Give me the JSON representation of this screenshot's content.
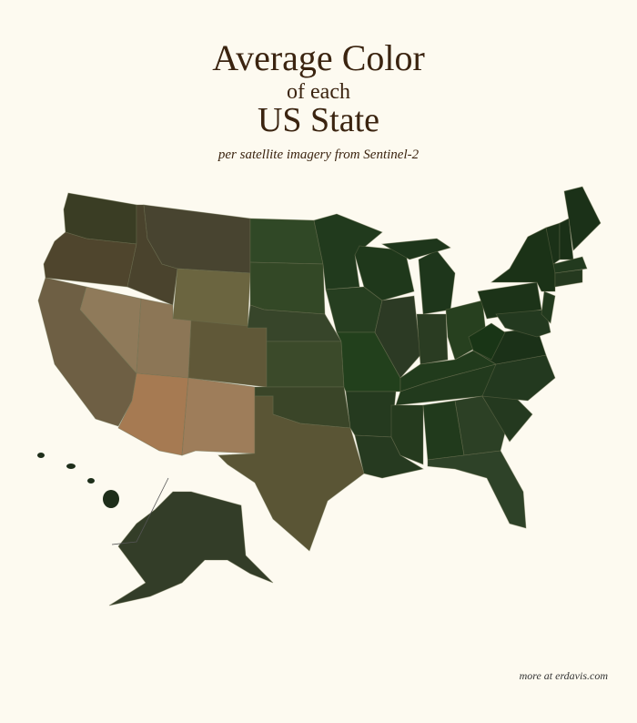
{
  "title": {
    "line1": "Average Color",
    "line2": "of each",
    "line3": "US State"
  },
  "subtitle": "per satellite imagery from Sentinel-2",
  "footer": "more at erdavis.com",
  "colors": {
    "background": "#fdfaf0",
    "text": "#3b2410",
    "border": "#6b7050"
  },
  "state_colors": {
    "WA": "#3a3d24",
    "OR": "#4f452d",
    "CA": "#6e5f44",
    "NV": "#8f7a5a",
    "ID": "#4a432d",
    "MT": "#484430",
    "WY": "#6b6540",
    "UT": "#8c7656",
    "CO": "#605838",
    "AZ": "#a67a52",
    "NM": "#9e7d5a",
    "ND": "#304826",
    "SD": "#334826",
    "NE": "#37452a",
    "KS": "#3b4a2a",
    "OK": "#3a4528",
    "TX": "#5a5535",
    "MN": "#213a1d",
    "IA": "#263e20",
    "MO": "#22401c",
    "AR": "#253a1f",
    "LA": "#263a20",
    "WI": "#1f381b",
    "IL": "#2c3a24",
    "MI": "#1e361b",
    "IN": "#2a3c22",
    "OH": "#27401f",
    "KY": "#213b1c",
    "TN": "#223a1d",
    "MS": "#253a1e",
    "AL": "#213a1c",
    "GA": "#2c4025",
    "FL": "#2e4228",
    "SC": "#24391f",
    "NC": "#23391f",
    "VA": "#1b3118",
    "WV": "#193516",
    "PA": "#1c3318",
    "NY": "#1b3217",
    "MD": "#23391f",
    "NJ": "#223a1e",
    "VT": "#1b3118",
    "NH": "#1a3017",
    "ME": "#1b3118",
    "MA": "#223a1e",
    "CT": "#25391f",
    "AK": "#333d28",
    "HI": "#1e2e1a"
  }
}
